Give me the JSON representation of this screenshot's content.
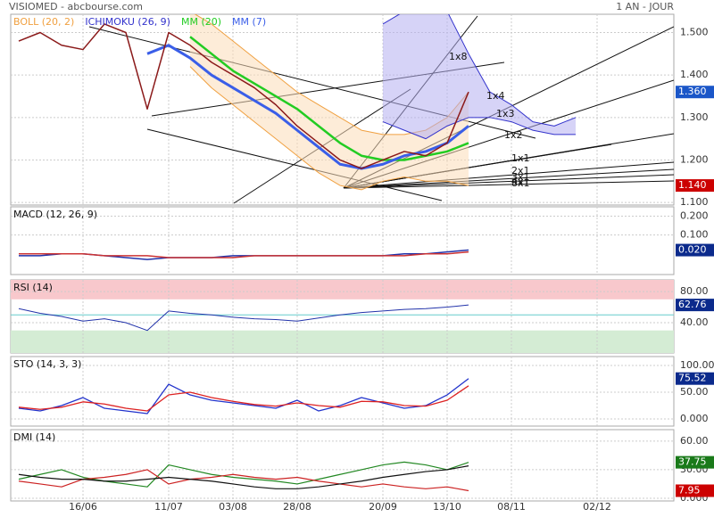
{
  "header": {
    "title": "VISIOMED - abcbourse.com",
    "period": "1 AN - JOUR"
  },
  "chart_data": [
    {
      "type": "line",
      "ylim": [
        1.094,
        1.543
      ],
      "grid": true,
      "yticks": [
        {
          "value": 1.1,
          "label": "1.100"
        },
        {
          "value": 1.2,
          "label": "1.200"
        },
        {
          "value": 1.3,
          "label": "1.300"
        },
        {
          "value": 1.4,
          "label": "1.400"
        },
        {
          "value": 1.5,
          "label": "1.500"
        }
      ],
      "series": [
        {
          "name": "BOLL (20, 2)",
          "color": "#f0a040",
          "fill": "#fbdcb8",
          "width": 1,
          "values": [
            null,
            null,
            null,
            null,
            null,
            null,
            null,
            null,
            1.55,
            1.52,
            1.48,
            1.44,
            1.4,
            1.36,
            1.33,
            1.3,
            1.27,
            1.26,
            1.26,
            1.27,
            1.3,
            1.36,
            null,
            null,
            null,
            null,
            null,
            null,
            null,
            null,
            null
          ],
          "lower": [
            null,
            null,
            null,
            null,
            null,
            null,
            null,
            null,
            1.42,
            1.37,
            1.33,
            1.29,
            1.25,
            1.21,
            1.17,
            1.14,
            1.13,
            1.15,
            1.16,
            1.15,
            1.15,
            1.14,
            null,
            null,
            null,
            null,
            null,
            null,
            null,
            null,
            null
          ]
        },
        {
          "name": "ICHIMOKU (26, 9)",
          "color": "#3333cc",
          "fill": "#b4aef0",
          "width": 1,
          "values": [
            null,
            null,
            null,
            null,
            null,
            null,
            null,
            null,
            null,
            null,
            null,
            null,
            null,
            null,
            null,
            null,
            null,
            1.52,
            1.55,
            1.55,
            1.55,
            1.45,
            1.36,
            1.33,
            1.29,
            1.28,
            1.3,
            null,
            null,
            null,
            null
          ],
          "lower": [
            null,
            null,
            null,
            null,
            null,
            null,
            null,
            null,
            null,
            null,
            null,
            null,
            null,
            null,
            null,
            null,
            null,
            1.29,
            1.27,
            1.25,
            1.28,
            1.3,
            1.3,
            1.29,
            1.27,
            1.26,
            1.26,
            null,
            null,
            null,
            null
          ]
        },
        {
          "name": "MM (20)",
          "color": "#22cc22",
          "width": 2.5,
          "values": [
            null,
            null,
            null,
            null,
            null,
            null,
            null,
            null,
            1.49,
            1.45,
            1.41,
            1.38,
            1.35,
            1.32,
            1.28,
            1.24,
            1.21,
            1.2,
            1.2,
            1.21,
            1.22,
            1.24,
            null,
            null,
            null,
            null,
            null,
            null,
            null,
            null,
            null
          ]
        },
        {
          "name": "MM (7)",
          "color": "#3a5ee8",
          "width": 3,
          "values": [
            null,
            null,
            null,
            null,
            null,
            null,
            1.45,
            1.47,
            1.44,
            1.4,
            1.37,
            1.34,
            1.31,
            1.27,
            1.23,
            1.19,
            1.18,
            1.19,
            1.21,
            1.22,
            1.24,
            1.28,
            null,
            null,
            null,
            null,
            null,
            null,
            null,
            null,
            null
          ]
        },
        {
          "color": "#8b1a1a",
          "width": 1.5,
          "values": [
            1.48,
            1.5,
            1.47,
            1.46,
            1.52,
            1.5,
            1.32,
            1.5,
            1.47,
            1.43,
            1.4,
            1.37,
            1.33,
            1.28,
            1.24,
            1.2,
            1.18,
            1.2,
            1.22,
            1.21,
            1.24,
            1.36,
            null,
            null,
            null,
            null,
            null,
            null,
            null,
            null,
            null
          ]
        }
      ],
      "last_labels": [
        {
          "value": 1.36,
          "label": "1.360",
          "color": "#1a56c8"
        },
        {
          "value": 1.14,
          "label": "1.140",
          "color": "#cc0000"
        }
      ],
      "annotations": [
        "1x8",
        "1x4",
        "1x3",
        "1x2",
        "1x1",
        "2x1",
        "3x1",
        "4x1",
        "8x1"
      ]
    },
    {
      "type": "line",
      "title": "MACD (12, 26, 9)",
      "ylim": [
        -0.11,
        0.25
      ],
      "grid": true,
      "yticks": [
        {
          "value": 0.1,
          "label": "0.100"
        },
        {
          "value": 0.2,
          "label": "0.200"
        }
      ],
      "series": [
        {
          "color": "#2233aa",
          "width": 1.5,
          "values": [
            -0.01,
            -0.01,
            0.0,
            0.0,
            -0.01,
            -0.02,
            -0.03,
            -0.02,
            -0.02,
            -0.02,
            -0.01,
            -0.01,
            -0.01,
            -0.01,
            -0.01,
            -0.01,
            -0.01,
            -0.01,
            0.0,
            0.0,
            0.01,
            0.02,
            null,
            null,
            null,
            null,
            null,
            null,
            null,
            null,
            null
          ]
        },
        {
          "color": "#cc3333",
          "width": 1.5,
          "values": [
            0.0,
            0.0,
            0.0,
            0.0,
            -0.01,
            -0.01,
            -0.01,
            -0.02,
            -0.02,
            -0.02,
            -0.02,
            -0.01,
            -0.01,
            -0.01,
            -0.01,
            -0.01,
            -0.01,
            -0.01,
            -0.01,
            0.0,
            0.0,
            0.01,
            null,
            null,
            null,
            null,
            null,
            null,
            null,
            null,
            null
          ]
        }
      ],
      "last_labels": [
        {
          "value": 0.02,
          "label": "0.020",
          "color": "#0b2a8c"
        }
      ]
    },
    {
      "type": "line",
      "title": "RSI (14)",
      "ylim": [
        1,
        95
      ],
      "grid": true,
      "yticks": [
        {
          "value": 40,
          "label": "40.00"
        },
        {
          "value": 80,
          "label": "80.00"
        }
      ],
      "zones": {
        "overbought": 70,
        "oversold": 30,
        "midline": 50
      },
      "series": [
        {
          "color": "#2233aa",
          "width": 1,
          "values": [
            58,
            52,
            48,
            42,
            45,
            40,
            30,
            55,
            52,
            50,
            47,
            45,
            44,
            42,
            46,
            50,
            53,
            55,
            57,
            58,
            60,
            62.76,
            null,
            null,
            null,
            null,
            null,
            null,
            null,
            null,
            null
          ]
        }
      ],
      "last_labels": [
        {
          "value": 62.76,
          "label": "62.76",
          "color": "#0b2a8c"
        }
      ]
    },
    {
      "type": "line",
      "title": "STO (14, 3, 3)",
      "ylim": [
        -13.3,
        116.7
      ],
      "grid": true,
      "yticks": [
        {
          "value": 0,
          "label": "0.000"
        },
        {
          "value": 50,
          "label": "50.00"
        },
        {
          "value": 100,
          "label": "100.00"
        }
      ],
      "series": [
        {
          "color": "#2233cc",
          "width": 1.3,
          "values": [
            20,
            15,
            25,
            40,
            20,
            15,
            10,
            65,
            45,
            35,
            30,
            25,
            20,
            35,
            15,
            25,
            40,
            30,
            20,
            25,
            45,
            75.52,
            null,
            null,
            null,
            null,
            null,
            null,
            null,
            null,
            null
          ]
        },
        {
          "color": "#dd2222",
          "width": 1.3,
          "values": [
            22,
            18,
            22,
            32,
            28,
            20,
            15,
            45,
            50,
            40,
            33,
            27,
            24,
            30,
            25,
            22,
            33,
            32,
            25,
            24,
            35,
            62,
            null,
            null,
            null,
            null,
            null,
            null,
            null,
            null,
            null
          ]
        }
      ],
      "last_labels": [
        {
          "value": 75.52,
          "label": "75.52",
          "color": "#0b2a8c"
        }
      ]
    },
    {
      "type": "line",
      "title": "DMI (14)",
      "ylim": [
        -2.8,
        72
      ],
      "grid": true,
      "yticks": [
        {
          "value": 0,
          "label": "0.000"
        },
        {
          "value": 30,
          "label": "30.00"
        },
        {
          "value": 60,
          "label": "60.00"
        }
      ],
      "categories": [
        null,
        null,
        null,
        "16/06",
        null,
        null,
        null,
        "11/07",
        null,
        null,
        "03/08",
        null,
        null,
        "28/08",
        null,
        null,
        null,
        "20/09",
        null,
        null,
        "13/10",
        null,
        null,
        "08/11",
        null,
        null,
        null,
        "02/12",
        null,
        null,
        null
      ],
      "series": [
        {
          "color": "#228822",
          "width": 1.2,
          "values": [
            20,
            25,
            30,
            22,
            18,
            15,
            12,
            35,
            30,
            25,
            22,
            20,
            18,
            15,
            20,
            25,
            30,
            35,
            38,
            35,
            30,
            37.75,
            null,
            null,
            null,
            null,
            null,
            null,
            null,
            null,
            null
          ]
        },
        {
          "color": "#cc2222",
          "width": 1.2,
          "values": [
            18,
            15,
            12,
            20,
            22,
            25,
            30,
            15,
            20,
            22,
            25,
            22,
            20,
            22,
            18,
            15,
            12,
            15,
            12,
            10,
            12,
            7.95,
            null,
            null,
            null,
            null,
            null,
            null,
            null,
            null,
            null
          ]
        },
        {
          "color": "#111111",
          "width": 1.2,
          "values": [
            25,
            22,
            20,
            20,
            18,
            18,
            20,
            22,
            20,
            18,
            15,
            12,
            10,
            10,
            12,
            15,
            18,
            22,
            25,
            28,
            30,
            34,
            null,
            null,
            null,
            null,
            null,
            null,
            null,
            null,
            null
          ]
        }
      ],
      "last_labels": [
        {
          "value": 37.75,
          "label": "37.75",
          "color": "#1a7a1a"
        },
        {
          "value": 7.95,
          "label": "7.95",
          "color": "#cc0000"
        }
      ]
    }
  ]
}
